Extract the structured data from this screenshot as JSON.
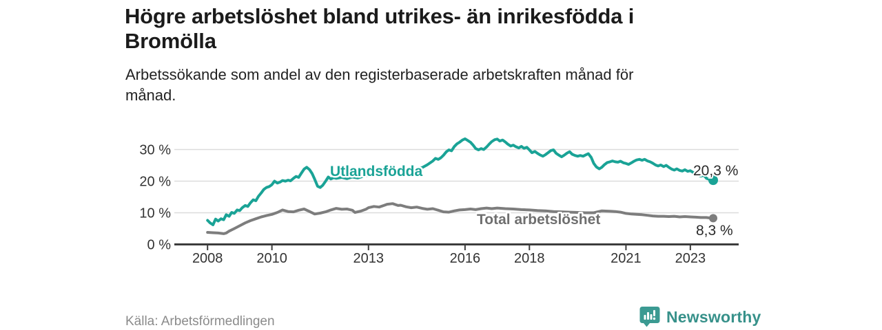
{
  "header": {
    "title_lines": [
      "Högre arbetslöshet bland utrikes- än inrikesfödda i",
      "Bromölla"
    ],
    "subtitle_lines": [
      "Arbetssökande som andel av den registerbaserade arbetskraften månad för",
      "månad."
    ]
  },
  "chart_data": {
    "type": "line",
    "title": "Högre arbetslöshet bland utrikes- än inrikesfödda i Bromölla",
    "subtitle": "Arbetssökande som andel av den registerbaserade arbetskraften månad för månad.",
    "xlabel": "",
    "ylabel": "",
    "x_axis": {
      "ticks": [
        2008,
        2010,
        2013,
        2016,
        2018,
        2021,
        2023
      ],
      "range": [
        2007,
        2024.5
      ]
    },
    "y_axis": {
      "ticks": [
        0,
        10,
        20,
        30
      ],
      "labels": [
        "0 %",
        "10 %",
        "20 %",
        "30 %"
      ],
      "range": [
        0,
        35
      ],
      "grid": true
    },
    "legend_position": "inline-labels",
    "series": [
      {
        "name": "Utlandsfödda",
        "color": "#1aa396",
        "end_label": "20,3 %",
        "end_value": 20.3,
        "points": [
          [
            2008.0,
            7.6
          ],
          [
            2008.08,
            6.8
          ],
          [
            2008.17,
            6.2
          ],
          [
            2008.25,
            8.0
          ],
          [
            2008.33,
            7.4
          ],
          [
            2008.42,
            8.1
          ],
          [
            2008.5,
            7.8
          ],
          [
            2008.58,
            9.4
          ],
          [
            2008.67,
            8.9
          ],
          [
            2008.75,
            10.1
          ],
          [
            2008.83,
            9.8
          ],
          [
            2008.92,
            10.9
          ],
          [
            2009.0,
            10.7
          ],
          [
            2009.08,
            11.6
          ],
          [
            2009.17,
            12.3
          ],
          [
            2009.25,
            12.0
          ],
          [
            2009.33,
            13.1
          ],
          [
            2009.42,
            14.1
          ],
          [
            2009.5,
            13.8
          ],
          [
            2009.58,
            15.2
          ],
          [
            2009.67,
            16.3
          ],
          [
            2009.75,
            17.4
          ],
          [
            2009.83,
            18.0
          ],
          [
            2009.92,
            18.3
          ],
          [
            2010.0,
            18.9
          ],
          [
            2010.08,
            20.0
          ],
          [
            2010.17,
            19.4
          ],
          [
            2010.25,
            19.7
          ],
          [
            2010.33,
            20.2
          ],
          [
            2010.42,
            20.0
          ],
          [
            2010.5,
            20.3
          ],
          [
            2010.58,
            20.1
          ],
          [
            2010.67,
            20.9
          ],
          [
            2010.75,
            21.5
          ],
          [
            2010.83,
            21.2
          ],
          [
            2010.92,
            22.6
          ],
          [
            2011.0,
            23.8
          ],
          [
            2011.08,
            24.4
          ],
          [
            2011.17,
            23.6
          ],
          [
            2011.25,
            22.4
          ],
          [
            2011.33,
            20.6
          ],
          [
            2011.42,
            18.4
          ],
          [
            2011.5,
            18.0
          ],
          [
            2011.58,
            18.7
          ],
          [
            2011.67,
            20.0
          ],
          [
            2011.75,
            21.3
          ],
          [
            2011.83,
            20.7
          ],
          [
            2011.92,
            21.1
          ],
          [
            2012.0,
            20.9
          ],
          [
            2012.17,
            21.2
          ],
          [
            2012.33,
            20.8
          ],
          [
            2012.5,
            21.3
          ],
          [
            2012.67,
            21.0
          ],
          [
            2012.83,
            21.5
          ],
          [
            2013.0,
            21.8
          ],
          [
            2013.17,
            22.1
          ],
          [
            2013.33,
            21.8
          ],
          [
            2013.5,
            22.3
          ],
          [
            2013.67,
            22.6
          ],
          [
            2013.83,
            22.9
          ],
          [
            2014.0,
            23.2
          ],
          [
            2014.17,
            23.6
          ],
          [
            2014.33,
            23.3
          ],
          [
            2014.5,
            23.9
          ],
          [
            2014.67,
            24.3
          ],
          [
            2014.83,
            25.2
          ],
          [
            2015.0,
            26.4
          ],
          [
            2015.08,
            27.2
          ],
          [
            2015.17,
            26.9
          ],
          [
            2015.25,
            27.4
          ],
          [
            2015.33,
            28.2
          ],
          [
            2015.42,
            29.3
          ],
          [
            2015.5,
            29.9
          ],
          [
            2015.58,
            29.6
          ],
          [
            2015.67,
            31.0
          ],
          [
            2015.75,
            31.8
          ],
          [
            2015.83,
            32.3
          ],
          [
            2015.92,
            33.0
          ],
          [
            2016.0,
            33.4
          ],
          [
            2016.08,
            32.9
          ],
          [
            2016.17,
            32.3
          ],
          [
            2016.25,
            31.4
          ],
          [
            2016.33,
            30.3
          ],
          [
            2016.42,
            29.9
          ],
          [
            2016.5,
            30.3
          ],
          [
            2016.58,
            30.0
          ],
          [
            2016.67,
            30.8
          ],
          [
            2016.75,
            31.7
          ],
          [
            2016.83,
            32.5
          ],
          [
            2016.92,
            33.1
          ],
          [
            2017.0,
            33.3
          ],
          [
            2017.08,
            32.7
          ],
          [
            2017.17,
            33.0
          ],
          [
            2017.25,
            32.4
          ],
          [
            2017.33,
            31.7
          ],
          [
            2017.42,
            31.1
          ],
          [
            2017.5,
            31.4
          ],
          [
            2017.58,
            30.9
          ],
          [
            2017.67,
            30.5
          ],
          [
            2017.75,
            31.0
          ],
          [
            2017.83,
            30.4
          ],
          [
            2017.92,
            30.7
          ],
          [
            2018.0,
            29.9
          ],
          [
            2018.08,
            29.0
          ],
          [
            2018.17,
            29.4
          ],
          [
            2018.25,
            28.8
          ],
          [
            2018.33,
            28.3
          ],
          [
            2018.42,
            27.9
          ],
          [
            2018.5,
            28.4
          ],
          [
            2018.58,
            29.0
          ],
          [
            2018.67,
            29.7
          ],
          [
            2018.75,
            29.9
          ],
          [
            2018.83,
            28.8
          ],
          [
            2018.92,
            28.2
          ],
          [
            2019.0,
            27.7
          ],
          [
            2019.08,
            28.2
          ],
          [
            2019.17,
            28.9
          ],
          [
            2019.25,
            29.3
          ],
          [
            2019.33,
            28.5
          ],
          [
            2019.42,
            28.1
          ],
          [
            2019.5,
            27.9
          ],
          [
            2019.58,
            28.1
          ],
          [
            2019.67,
            27.9
          ],
          [
            2019.75,
            28.3
          ],
          [
            2019.83,
            28.7
          ],
          [
            2019.92,
            27.5
          ],
          [
            2020.0,
            25.6
          ],
          [
            2020.08,
            24.5
          ],
          [
            2020.17,
            23.9
          ],
          [
            2020.25,
            24.4
          ],
          [
            2020.33,
            25.2
          ],
          [
            2020.42,
            25.9
          ],
          [
            2020.5,
            26.1
          ],
          [
            2020.58,
            26.4
          ],
          [
            2020.67,
            26.1
          ],
          [
            2020.75,
            26.0
          ],
          [
            2020.83,
            26.3
          ],
          [
            2020.92,
            25.8
          ],
          [
            2021.0,
            25.6
          ],
          [
            2021.08,
            25.3
          ],
          [
            2021.17,
            25.8
          ],
          [
            2021.25,
            26.3
          ],
          [
            2021.33,
            26.7
          ],
          [
            2021.42,
            26.9
          ],
          [
            2021.5,
            26.6
          ],
          [
            2021.58,
            26.9
          ],
          [
            2021.67,
            26.4
          ],
          [
            2021.75,
            26.1
          ],
          [
            2021.83,
            25.7
          ],
          [
            2021.92,
            25.1
          ],
          [
            2022.0,
            24.8
          ],
          [
            2022.08,
            25.1
          ],
          [
            2022.17,
            24.6
          ],
          [
            2022.25,
            25.0
          ],
          [
            2022.33,
            24.4
          ],
          [
            2022.42,
            23.8
          ],
          [
            2022.5,
            23.5
          ],
          [
            2022.58,
            23.9
          ],
          [
            2022.67,
            23.4
          ],
          [
            2022.75,
            23.2
          ],
          [
            2022.83,
            23.6
          ],
          [
            2022.92,
            23.1
          ],
          [
            2023.0,
            23.3
          ],
          [
            2023.08,
            22.8
          ],
          [
            2023.17,
            22.3
          ],
          [
            2023.25,
            21.9
          ],
          [
            2023.33,
            21.6
          ],
          [
            2023.42,
            21.9
          ],
          [
            2023.5,
            20.9
          ],
          [
            2023.58,
            20.6
          ],
          [
            2023.67,
            20.4
          ],
          [
            2023.71,
            20.3
          ]
        ]
      },
      {
        "name": "Total arbetslöshet",
        "color": "#7d7d7d",
        "end_label": "8,3 %",
        "end_value": 8.3,
        "points": [
          [
            2008.0,
            3.8
          ],
          [
            2008.17,
            3.7
          ],
          [
            2008.33,
            3.6
          ],
          [
            2008.5,
            3.4
          ],
          [
            2008.58,
            3.6
          ],
          [
            2008.67,
            4.2
          ],
          [
            2008.83,
            5.0
          ],
          [
            2009.0,
            5.9
          ],
          [
            2009.17,
            6.8
          ],
          [
            2009.33,
            7.5
          ],
          [
            2009.5,
            8.1
          ],
          [
            2009.67,
            8.7
          ],
          [
            2009.83,
            9.1
          ],
          [
            2010.0,
            9.5
          ],
          [
            2010.17,
            10.1
          ],
          [
            2010.33,
            10.9
          ],
          [
            2010.5,
            10.4
          ],
          [
            2010.67,
            10.3
          ],
          [
            2010.83,
            10.8
          ],
          [
            2011.0,
            11.2
          ],
          [
            2011.17,
            10.4
          ],
          [
            2011.33,
            9.6
          ],
          [
            2011.5,
            9.9
          ],
          [
            2011.67,
            10.3
          ],
          [
            2011.83,
            10.9
          ],
          [
            2012.0,
            11.4
          ],
          [
            2012.17,
            11.1
          ],
          [
            2012.33,
            11.2
          ],
          [
            2012.5,
            10.8
          ],
          [
            2012.58,
            10.1
          ],
          [
            2012.75,
            10.5
          ],
          [
            2012.92,
            11.1
          ],
          [
            2013.0,
            11.6
          ],
          [
            2013.17,
            12.0
          ],
          [
            2013.33,
            11.8
          ],
          [
            2013.5,
            12.4
          ],
          [
            2013.58,
            12.7
          ],
          [
            2013.75,
            12.9
          ],
          [
            2013.92,
            12.3
          ],
          [
            2014.0,
            12.4
          ],
          [
            2014.17,
            11.9
          ],
          [
            2014.33,
            11.6
          ],
          [
            2014.5,
            11.8
          ],
          [
            2014.67,
            11.4
          ],
          [
            2014.83,
            11.1
          ],
          [
            2015.0,
            11.3
          ],
          [
            2015.17,
            10.8
          ],
          [
            2015.33,
            10.3
          ],
          [
            2015.5,
            10.2
          ],
          [
            2015.67,
            10.6
          ],
          [
            2015.83,
            10.9
          ],
          [
            2016.0,
            11.0
          ],
          [
            2016.17,
            11.2
          ],
          [
            2016.33,
            11.0
          ],
          [
            2016.5,
            11.3
          ],
          [
            2016.67,
            11.5
          ],
          [
            2016.83,
            11.3
          ],
          [
            2017.0,
            11.5
          ],
          [
            2017.25,
            11.3
          ],
          [
            2017.5,
            11.2
          ],
          [
            2017.75,
            11.0
          ],
          [
            2018.0,
            10.9
          ],
          [
            2018.25,
            10.7
          ],
          [
            2018.5,
            10.6
          ],
          [
            2018.75,
            10.4
          ],
          [
            2019.0,
            10.3
          ],
          [
            2019.25,
            10.2
          ],
          [
            2019.5,
            10.1
          ],
          [
            2019.75,
            10.0
          ],
          [
            2020.0,
            10.0
          ],
          [
            2020.25,
            10.6
          ],
          [
            2020.5,
            10.5
          ],
          [
            2020.67,
            10.4
          ],
          [
            2020.83,
            10.2
          ],
          [
            2021.0,
            9.8
          ],
          [
            2021.17,
            9.6
          ],
          [
            2021.33,
            9.5
          ],
          [
            2021.5,
            9.4
          ],
          [
            2021.67,
            9.2
          ],
          [
            2021.83,
            9.0
          ],
          [
            2022.0,
            8.9
          ],
          [
            2022.17,
            8.9
          ],
          [
            2022.33,
            8.8
          ],
          [
            2022.5,
            8.9
          ],
          [
            2022.67,
            8.7
          ],
          [
            2022.83,
            8.8
          ],
          [
            2023.0,
            8.7
          ],
          [
            2023.17,
            8.6
          ],
          [
            2023.33,
            8.5
          ],
          [
            2023.5,
            8.5
          ],
          [
            2023.58,
            8.4
          ],
          [
            2023.71,
            8.3
          ]
        ]
      }
    ]
  },
  "footer": {
    "source": "Källa: Arbetsförmedlingen",
    "brand": "Newsworthy"
  },
  "colors": {
    "line_utlandsfodda": "#1aa396",
    "line_total": "#7d7d7d",
    "title_text": "#1b1b1b",
    "axis_text": "#333333",
    "gridline": "#dcdcdc",
    "axis_line": "#3c3c3c",
    "source_text": "#8b8b8b",
    "brand_teal": "#37918a",
    "background": "#ffffff"
  }
}
